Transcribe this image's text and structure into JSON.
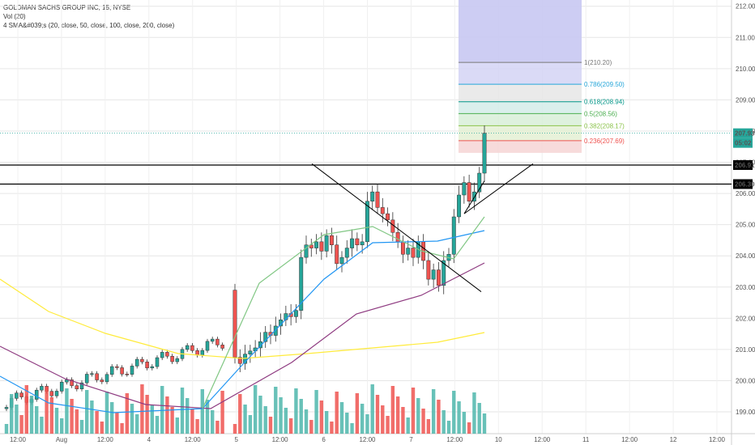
{
  "legend": {
    "line1": "GOLDMAN SACHS GROUP INC, 15, NYSE",
    "line2": "Vol (20)",
    "line3": "4 SMA&#039;s (20, close, 50, close, 100, close, 200, close)"
  },
  "price_tags": [
    {
      "value": "207.93",
      "bg": "#26a69a",
      "color": "#ffffff"
    },
    {
      "value": "05:02",
      "bg": "#26a69a",
      "color": "#ffffff"
    },
    {
      "value": "206.91",
      "bg": "#000000",
      "color": "#ffffff"
    },
    {
      "value": "206.30",
      "bg": "#000000",
      "color": "#ffffff"
    }
  ],
  "colors": {
    "up": "#26a69a",
    "down": "#ef5350",
    "vol_up": "#4db6ac",
    "vol_down": "#ef5350",
    "sma20": "#81c784",
    "sma50": "#2196f3",
    "sma100": "#8e3a80",
    "sma200": "#ffeb3b",
    "grid": "#e6e6e6"
  },
  "chart_data": {
    "type": "candlestick",
    "symbol": "GOLDMAN SACHS GROUP INC",
    "interval": "15",
    "exchange": "NYSE",
    "yaxis_ticks": [
      "199.00",
      "200.00",
      "201.00",
      "202.00",
      "203.00",
      "204.00",
      "205.00",
      "206.00",
      "207.00",
      "208.00",
      "209.00",
      "210.00",
      "211.00",
      "212.00"
    ],
    "ylim": [
      198.3,
      212.2
    ],
    "xaxis_ticks": [
      "12:00",
      "Aug",
      "12:00",
      "4",
      "12:00",
      "5",
      "12:00",
      "6",
      "12:00",
      "7",
      "12:00",
      "10",
      "12:00",
      "11",
      "12:00",
      "12",
      "12:00"
    ],
    "closes": [
      200.75,
      200.55,
      200.85,
      200.95,
      201.05,
      201.25,
      201.55,
      201.45,
      201.75,
      201.95,
      202.15,
      202.05,
      202.25,
      203.95,
      204.35,
      204.25,
      204.45,
      204.15,
      204.65,
      204.35,
      203.75,
      203.95,
      204.25,
      204.55,
      204.35,
      204.45,
      205.75,
      206.05,
      205.55,
      205.35,
      205.15,
      204.75,
      204.45,
      204.05,
      204.25,
      203.95,
      204.45,
      203.85,
      203.25,
      203.55,
      203.05,
      203.85,
      204.05,
      205.25,
      205.95,
      206.35,
      205.75,
      206.05,
      206.65,
      207.93
    ],
    "fib_levels": [
      {
        "ratio": "0.236",
        "label": "0.236(207.69)",
        "price": 207.69,
        "color": "#ef5350",
        "fill": "#f6d5d5"
      },
      {
        "ratio": "0.382",
        "label": "0.382(208.17)",
        "price": 208.17,
        "color": "#8bc34a",
        "fill": "#e4f0d3"
      },
      {
        "ratio": "0.5",
        "label": "0.5(208.56)",
        "price": 208.56,
        "color": "#4caf50",
        "fill": "#d8eed8"
      },
      {
        "ratio": "0.618",
        "label": "0.618(208.94)",
        "price": 208.94,
        "color": "#009688",
        "fill": "#d4ece9"
      },
      {
        "ratio": "0.786",
        "label": "0.786(209.50)",
        "price": 209.5,
        "color": "#26a6d9",
        "fill": "#e6e6e6"
      },
      {
        "ratio": "1",
        "label": "1(210.20)",
        "price": 210.2,
        "color": "#777777",
        "fill": "#d3d3f5"
      }
    ],
    "horizontal_levels": [
      206.91,
      206.3
    ]
  }
}
